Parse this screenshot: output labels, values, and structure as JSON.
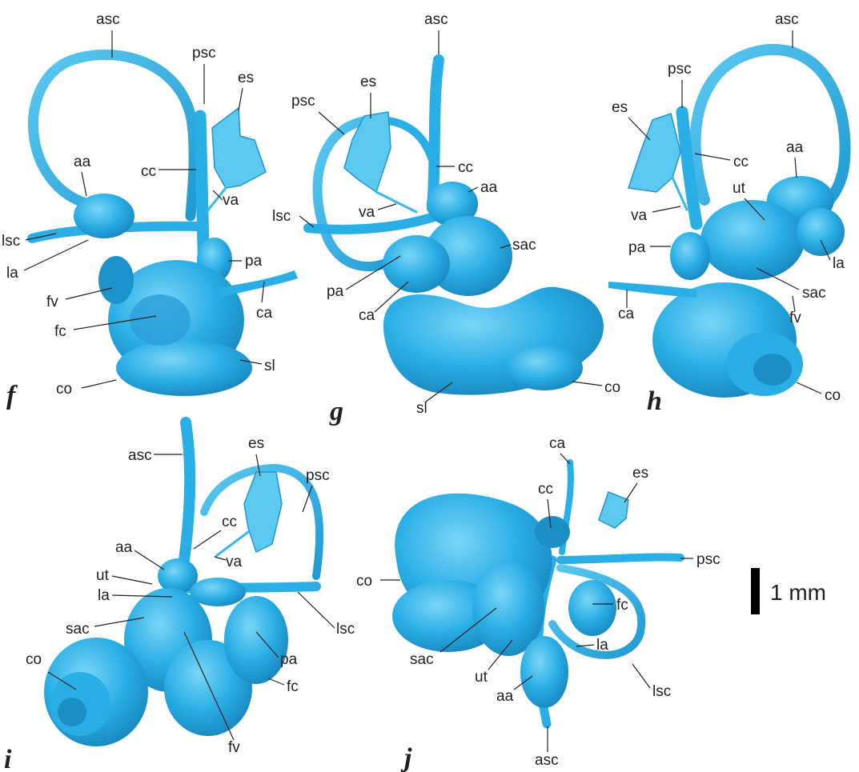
{
  "colors": {
    "structure": "#2aaee6",
    "structure_dark": "#1b8ec4",
    "structure_light": "#6dd0f4",
    "leader": "#231f20"
  },
  "panels": [
    {
      "letter": "f",
      "labels": [
        "asc",
        "psc",
        "es",
        "aa",
        "cc",
        "va",
        "lsc",
        "la",
        "pa",
        "fv",
        "ca",
        "fc",
        "sl",
        "co"
      ]
    },
    {
      "letter": "g",
      "labels": [
        "asc",
        "psc",
        "es",
        "cc",
        "aa",
        "lsc",
        "va",
        "sac",
        "pa",
        "ca",
        "co",
        "sl"
      ]
    },
    {
      "letter": "h",
      "labels": [
        "asc",
        "psc",
        "es",
        "cc",
        "aa",
        "ut",
        "va",
        "pa",
        "la",
        "sac",
        "ca",
        "fv",
        "co"
      ]
    },
    {
      "letter": "i",
      "labels": [
        "asc",
        "es",
        "psc",
        "cc",
        "aa",
        "va",
        "ut",
        "la",
        "sac",
        "lsc",
        "pa",
        "co",
        "fc",
        "fv"
      ]
    },
    {
      "letter": "j",
      "labels": [
        "ca",
        "cc",
        "es",
        "psc",
        "co",
        "fc",
        "sac",
        "la",
        "ut",
        "aa",
        "lsc",
        "asc"
      ]
    }
  ],
  "scale_bar": {
    "label": "1 mm"
  }
}
